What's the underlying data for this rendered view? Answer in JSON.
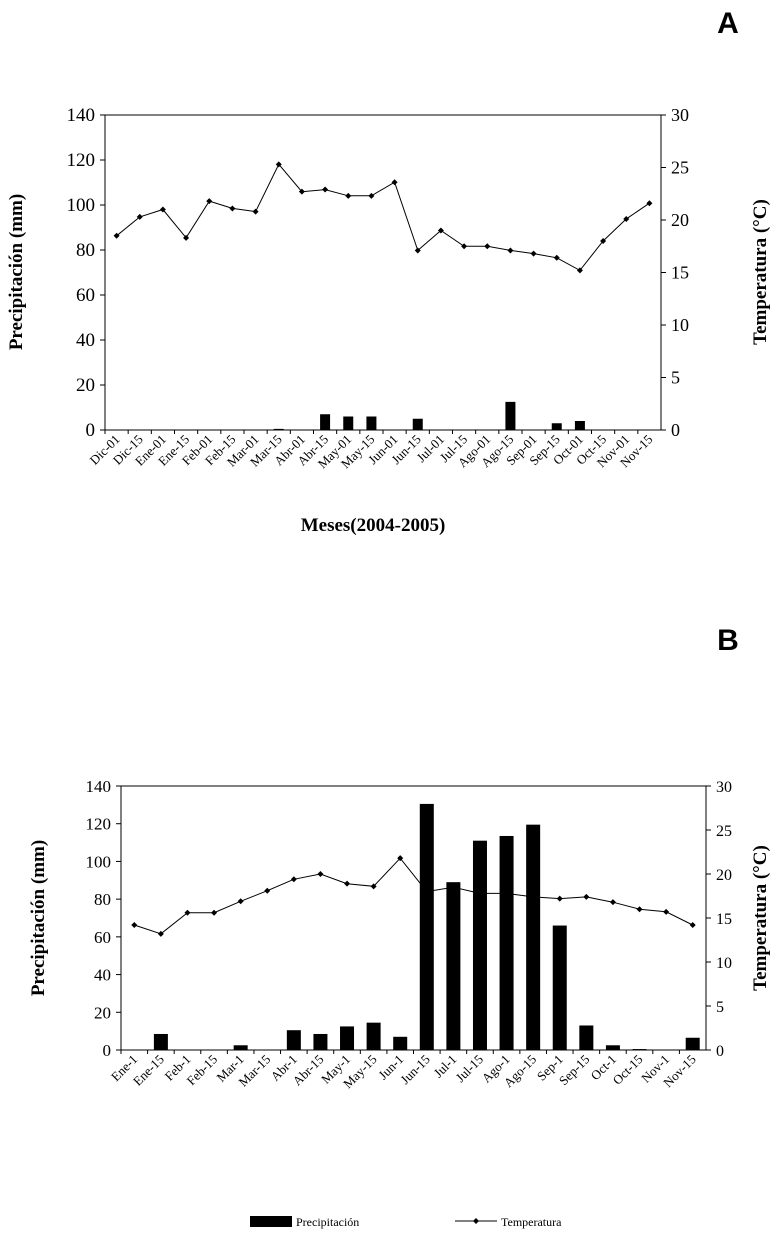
{
  "chart_data": [
    {
      "type": "bar+line",
      "panel_label": "A",
      "xlabel": "Meses(2004-2005)",
      "ylabel": "Precipitación (mm)",
      "y2label": "Temperatura (°C)",
      "ylim": [
        0,
        140
      ],
      "y2lim": [
        0,
        30
      ],
      "yticks": [
        "0",
        "20",
        "40",
        "60",
        "80",
        "100",
        "120",
        "140"
      ],
      "y2ticks": [
        "0",
        "5",
        "10",
        "15",
        "20",
        "25",
        "30"
      ],
      "categories": [
        "Dic-01",
        "Dic-15",
        "Ene-01",
        "Ene-15",
        "Feb-01",
        "Feb-15",
        "Mar-01",
        "Mar-15",
        "Abr-01",
        "Abr-15",
        "May-01",
        "May-15",
        "Jun-01",
        "Jun-15",
        "Jul-01",
        "Jul-15",
        "Ago-01",
        "Ago-15",
        "Sep-01",
        "Sep-15",
        "Oct-01",
        "Oct-15",
        "Nov-01",
        "Nov-15"
      ],
      "series": [
        {
          "name": "Precipitación",
          "kind": "bar",
          "axis": "left",
          "values": [
            0,
            0,
            0,
            0,
            0,
            0,
            0,
            0.5,
            0,
            7,
            6,
            6,
            0,
            5,
            0,
            0,
            0,
            12.5,
            0,
            3,
            4,
            0,
            0,
            0
          ]
        },
        {
          "name": "Temperatura",
          "kind": "line",
          "axis": "right",
          "values": [
            18.5,
            20.3,
            21,
            18.3,
            21.8,
            21.1,
            20.8,
            25.3,
            22.7,
            22.9,
            22.3,
            22.3,
            23.6,
            17.1,
            19,
            17.5,
            17.5,
            17.1,
            16.8,
            16.4,
            15.2,
            18,
            20.1,
            21.6
          ]
        }
      ]
    },
    {
      "type": "bar+line",
      "panel_label": "B",
      "xlabel": "",
      "ylabel": "Precipitación (mm)",
      "y2label": "Temperatura (°C)",
      "ylim": [
        0,
        140
      ],
      "y2lim": [
        0,
        30
      ],
      "yticks": [
        "0",
        "20",
        "40",
        "60",
        "80",
        "100",
        "120",
        "140"
      ],
      "y2ticks": [
        "0",
        "5",
        "10",
        "15",
        "20",
        "25",
        "30"
      ],
      "categories": [
        "Ene-1",
        "Ene-15",
        "Feb-1",
        "Feb-15",
        "Mar-1",
        "Mar-15",
        "Abr-1",
        "Abr-15",
        "May-1",
        "May-15",
        "Jun-1",
        "Jun-15",
        "Jul-1",
        "Jul-15",
        "Ago-1",
        "Ago-15",
        "Sep-1",
        "Sep-15",
        "Oct-1",
        "Oct-15",
        "Nov-1",
        "Nov-15"
      ],
      "series": [
        {
          "name": "Precipitación",
          "kind": "bar",
          "axis": "left",
          "values": [
            0,
            8.5,
            0,
            0,
            2.5,
            0,
            10.5,
            8.5,
            12.5,
            14.5,
            7,
            130.5,
            89,
            111,
            113.5,
            119.5,
            66,
            13,
            2.5,
            0.5,
            0,
            6.5
          ]
        },
        {
          "name": "Temperatura",
          "kind": "line",
          "axis": "right",
          "values": [
            14.2,
            13.2,
            15.6,
            15.6,
            16.9,
            18.1,
            19.4,
            20,
            18.9,
            18.6,
            21.8,
            18,
            18.5,
            17.8,
            17.8,
            17.4,
            17.2,
            17.4,
            16.8,
            16,
            15.7,
            14.2
          ]
        }
      ],
      "legend": {
        "precip_label": "Precipitación",
        "temp_label": "Temperatura",
        "position": "bottom"
      }
    }
  ]
}
